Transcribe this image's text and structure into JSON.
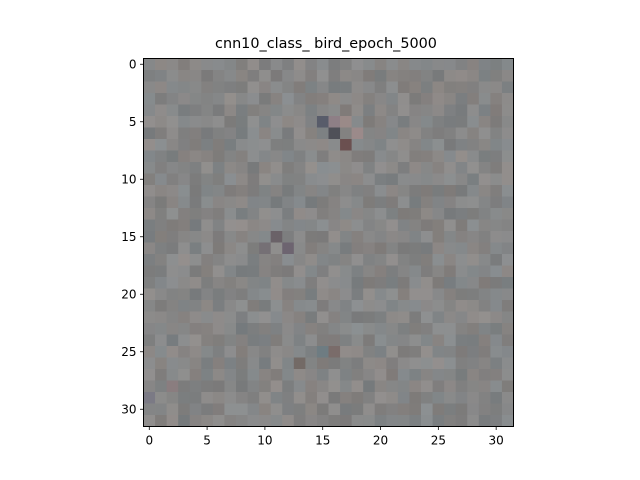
{
  "chart_data": {
    "type": "heatmap",
    "title": "cnn10_class_ bird_epoch_5000",
    "xlabel": "",
    "ylabel": "",
    "image_size": [
      32,
      32
    ],
    "xlim": [
      -0.5,
      31.5
    ],
    "ylim": [
      31.5,
      -0.5
    ],
    "x_ticks": [
      0,
      5,
      10,
      15,
      20,
      25,
      30
    ],
    "y_ticks": [
      0,
      5,
      10,
      15,
      20,
      25,
      30
    ],
    "x_tick_labels": [
      "0",
      "5",
      "10",
      "15",
      "20",
      "25",
      "30"
    ],
    "y_tick_labels": [
      "0",
      "5",
      "10",
      "15",
      "20",
      "25",
      "30"
    ],
    "grid": false,
    "base_color": "#858585",
    "notable_pixels": [
      {
        "x": 15,
        "y": 5,
        "color": "#585c6a"
      },
      {
        "x": 16,
        "y": 6,
        "color": "#4f5058"
      },
      {
        "x": 17,
        "y": 5,
        "color": "#9a8a88"
      },
      {
        "x": 17,
        "y": 7,
        "color": "#6b5050"
      },
      {
        "x": 16,
        "y": 5,
        "color": "#8e7f86"
      },
      {
        "x": 18,
        "y": 6,
        "color": "#9b8a8a"
      },
      {
        "x": 11,
        "y": 15,
        "color": "#6a6268"
      },
      {
        "x": 10,
        "y": 16,
        "color": "#757075"
      },
      {
        "x": 12,
        "y": 16,
        "color": "#6d6470"
      },
      {
        "x": 15,
        "y": 25,
        "color": "#6e7c82"
      },
      {
        "x": 16,
        "y": 25,
        "color": "#7a6c6a"
      },
      {
        "x": 13,
        "y": 26,
        "color": "#736a66"
      },
      {
        "x": 2,
        "y": 28,
        "color": "#8a7d7f"
      },
      {
        "x": 0,
        "y": 29,
        "color": "#7b7a85"
      }
    ]
  }
}
